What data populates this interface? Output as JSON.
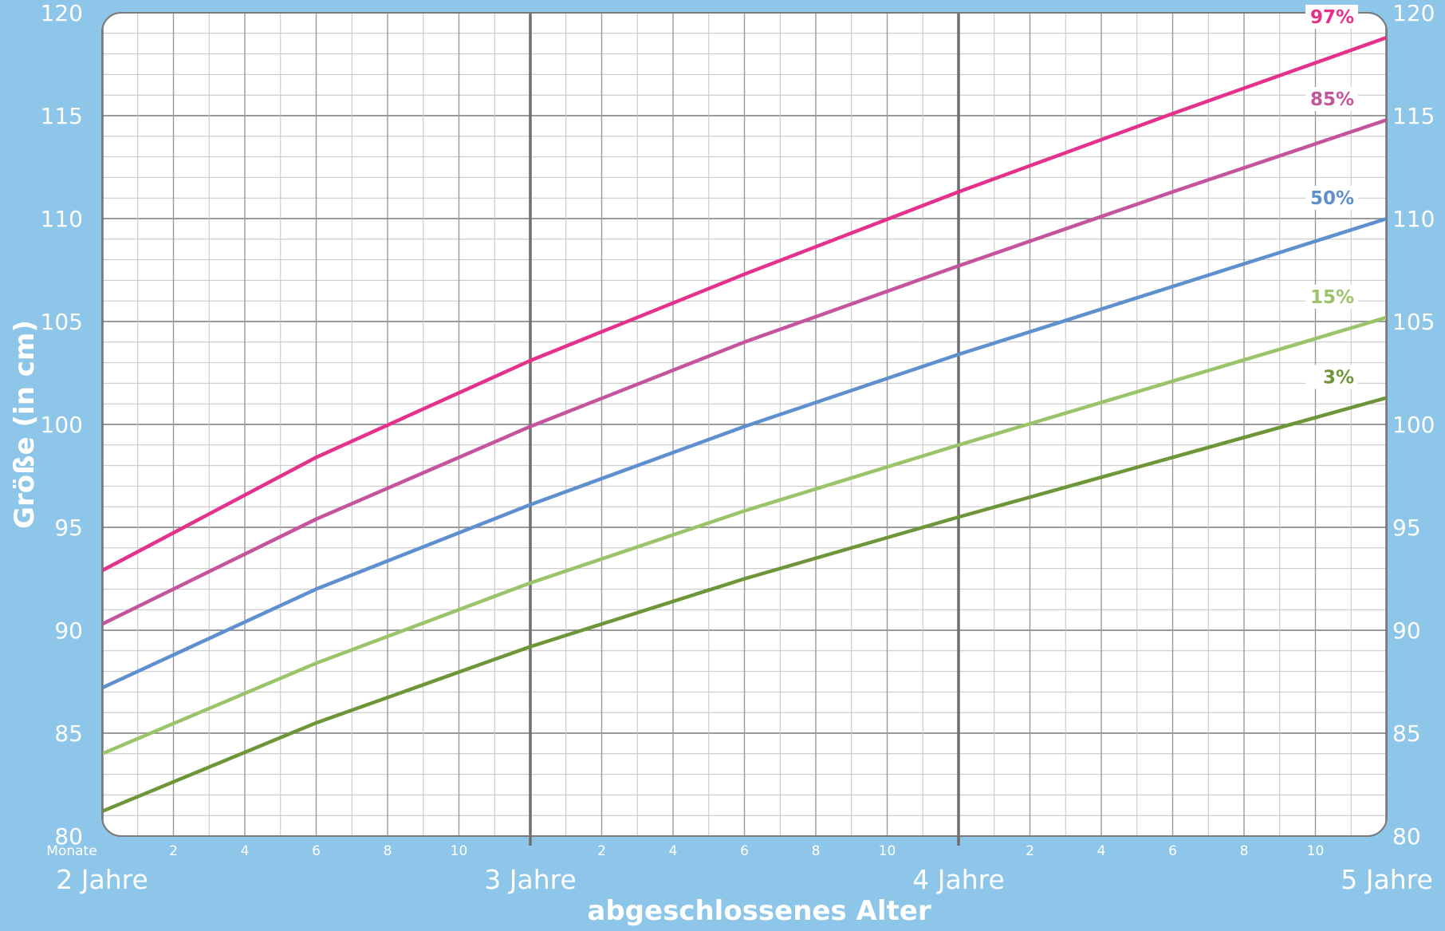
{
  "chart_data": {
    "type": "line",
    "ylabel": "Größe (in cm)",
    "xlabel": "abgeschlossenes Alter",
    "ylim": [
      80,
      120
    ],
    "xlim": [
      24,
      60
    ],
    "y_ticks": [
      80,
      85,
      90,
      95,
      100,
      105,
      110,
      115,
      120
    ],
    "x_unit_label": "Monate",
    "x_month_ticks": [
      "2",
      "4",
      "6",
      "8",
      "10"
    ],
    "x_year_labels": [
      {
        "months": 24,
        "label": "2 Jahre"
      },
      {
        "months": 36,
        "label": "3 Jahre"
      },
      {
        "months": 48,
        "label": "4 Jahre"
      },
      {
        "months": 60,
        "label": "5 Jahre"
      }
    ],
    "grid": true,
    "x": [
      24,
      30,
      36,
      42,
      48,
      54,
      60
    ],
    "series": [
      {
        "name": "97%",
        "color": "#e5308c",
        "values": [
          92.9,
          98.4,
          103.1,
          107.3,
          111.3,
          115.1,
          118.8
        ]
      },
      {
        "name": "85%",
        "color": "#c4549c",
        "values": [
          90.3,
          95.4,
          99.9,
          104.0,
          107.7,
          111.3,
          114.8
        ]
      },
      {
        "name": "50%",
        "color": "#5e8fce",
        "values": [
          87.2,
          92.0,
          96.1,
          99.9,
          103.4,
          106.7,
          110.0
        ]
      },
      {
        "name": "15%",
        "color": "#9bc46a",
        "values": [
          84.0,
          88.4,
          92.3,
          95.8,
          99.0,
          102.1,
          105.2
        ]
      },
      {
        "name": "3%",
        "color": "#6e9538",
        "values": [
          81.2,
          85.5,
          89.2,
          92.5,
          95.5,
          98.4,
          101.3
        ]
      }
    ]
  }
}
